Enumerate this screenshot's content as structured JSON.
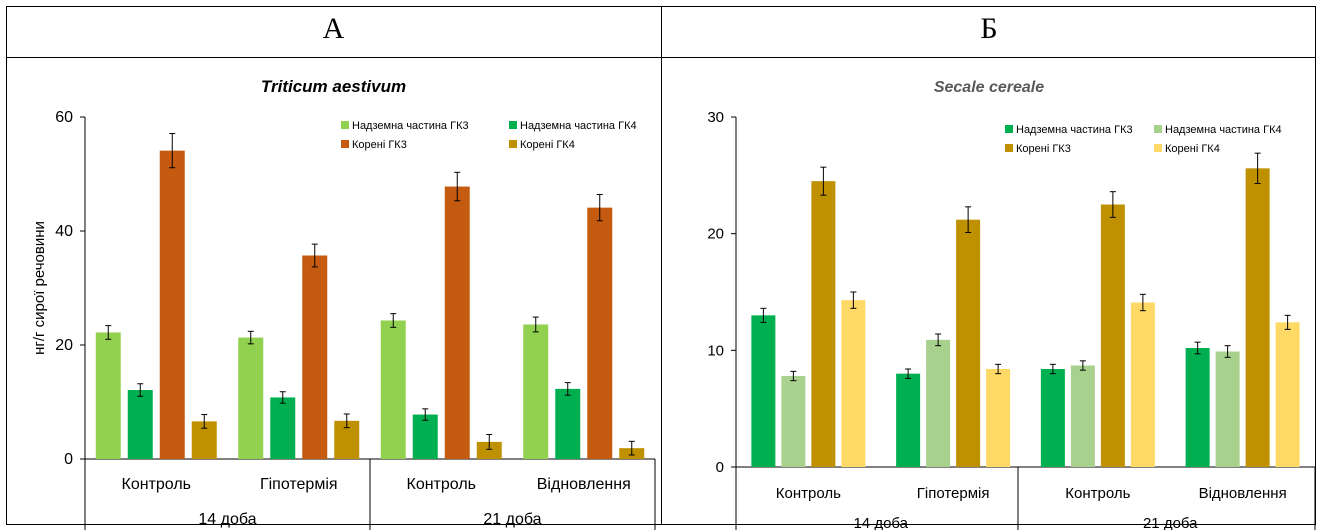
{
  "panels": [
    {
      "letter": "А"
    },
    {
      "letter": "Б"
    }
  ],
  "chart_data": [
    {
      "type": "bar",
      "title": "Triticum aestivum",
      "ylabel": "нг/г сирої речовини",
      "ylim": [
        0,
        60
      ],
      "yticks": [
        0,
        20,
        40,
        60
      ],
      "categories": [
        "Контроль",
        "Гіпотермія",
        "Контроль",
        "Відновлення"
      ],
      "groups": [
        {
          "label": "14 доба",
          "span": [
            0,
            1
          ]
        },
        {
          "label": "21 доба",
          "span": [
            2,
            3
          ]
        }
      ],
      "legend_position": "top-right",
      "series": [
        {
          "name": "Надземна частина ГК3",
          "color": "#92d050",
          "values": [
            22.2,
            21.3,
            24.3,
            23.6
          ],
          "errors": [
            1.2,
            1.1,
            1.2,
            1.3
          ]
        },
        {
          "name": "Надземна частина ГК4",
          "color": "#00b050",
          "values": [
            12.1,
            10.8,
            7.8,
            12.3
          ],
          "errors": [
            1.1,
            1.0,
            1.0,
            1.1
          ]
        },
        {
          "name": "Корені ГК3",
          "color": "#c55a11",
          "values": [
            54.1,
            35.7,
            47.8,
            44.1
          ],
          "errors": [
            3.0,
            2.0,
            2.5,
            2.3
          ]
        },
        {
          "name": "Корені ГК4",
          "color": "#bf9000",
          "values": [
            6.6,
            6.7,
            3.0,
            1.9
          ],
          "errors": [
            1.2,
            1.2,
            1.3,
            1.2
          ]
        }
      ]
    },
    {
      "type": "bar",
      "title": "Secale cereale",
      "ylabel": "",
      "ylim": [
        0,
        30
      ],
      "yticks": [
        0,
        10,
        20,
        30
      ],
      "categories": [
        "Контроль",
        "Гіпотермія",
        "Контроль",
        "Відновлення"
      ],
      "groups": [
        {
          "label": "14 доба",
          "span": [
            0,
            1
          ]
        },
        {
          "label": "21 доба",
          "span": [
            2,
            3
          ]
        }
      ],
      "legend_position": "top-right",
      "series": [
        {
          "name": "Надземна частина ГК3",
          "color": "#00b050",
          "values": [
            13.0,
            8.0,
            8.4,
            10.2
          ],
          "errors": [
            0.6,
            0.4,
            0.4,
            0.5
          ]
        },
        {
          "name": "Надземна частина ГК4",
          "color": "#a9d18e",
          "values": [
            7.8,
            10.9,
            8.7,
            9.9
          ],
          "errors": [
            0.4,
            0.5,
            0.4,
            0.5
          ]
        },
        {
          "name": "Корені ГК3",
          "color": "#bf9000",
          "values": [
            24.5,
            21.2,
            22.5,
            25.6
          ],
          "errors": [
            1.2,
            1.1,
            1.1,
            1.3
          ]
        },
        {
          "name": "Корені ГК4",
          "color": "#ffd966",
          "values": [
            14.3,
            8.4,
            14.1,
            12.4
          ],
          "errors": [
            0.7,
            0.4,
            0.7,
            0.6
          ]
        }
      ]
    }
  ]
}
